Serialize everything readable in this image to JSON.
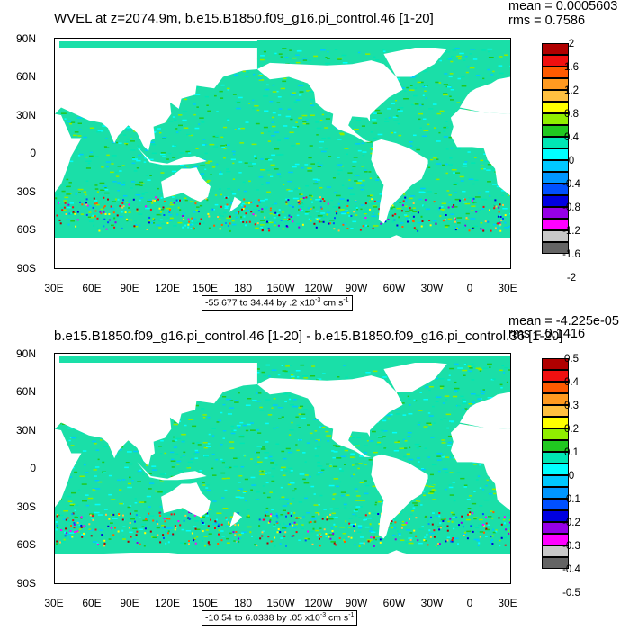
{
  "panels": [
    {
      "title": "WVEL at z=2074.9m, b.e15.B1850.f09_g16.pi_control.46 [1-20]",
      "mean": "mean = 0.0005603",
      "rms": "rms = 0.7586",
      "range_text": "-55.677 to 34.44 by .2 x10",
      "range_exp": "-3",
      "range_units": " cm s",
      "range_unit_exp": "-1",
      "colorbar_labels": [
        "2",
        "1.6",
        "1.2",
        "0.8",
        "0.4",
        "0",
        "-0.4",
        "-0.8",
        "-1.2",
        "-1.6",
        "-2"
      ]
    },
    {
      "title": "b.e15.B1850.f09_g16.pi_control.46 [1-20] - b.e15.B1850.f09_g16.pi_control.36 [1-20]",
      "mean": "mean = -4.225e-05",
      "rms": "rms = 0.1416",
      "range_text": "-10.54 to 6.0338 by .05 x10",
      "range_exp": "-3",
      "range_units": " cm s",
      "range_unit_exp": "-1",
      "colorbar_labels": [
        "0.5",
        "0.4",
        "0.3",
        "0.2",
        "0.1",
        "0",
        "-0.1",
        "-0.2",
        "-0.3",
        "-0.4",
        "-0.5"
      ]
    }
  ],
  "lat_labels": [
    "90N",
    "60N",
    "30N",
    "0",
    "30S",
    "60S",
    "90S"
  ],
  "lon_labels": [
    "30E",
    "60E",
    "90E",
    "120E",
    "150E",
    "180",
    "150W",
    "120W",
    "90W",
    "60W",
    "30W",
    "0",
    "30E"
  ],
  "colors": {
    "colorbar": [
      "#b00000",
      "#f01010",
      "#ff5a00",
      "#ff9a20",
      "#ffc040",
      "#ffff00",
      "#90ee00",
      "#20c820",
      "#00e6b4",
      "#00ffff",
      "#00c8ff",
      "#0096ff",
      "#0050ff",
      "#0000e0",
      "#9600e6",
      "#ff00ff",
      "#c8c8c8",
      "#646464"
    ],
    "ocean_base": "#1adfa8",
    "land": "#ffffff"
  }
}
